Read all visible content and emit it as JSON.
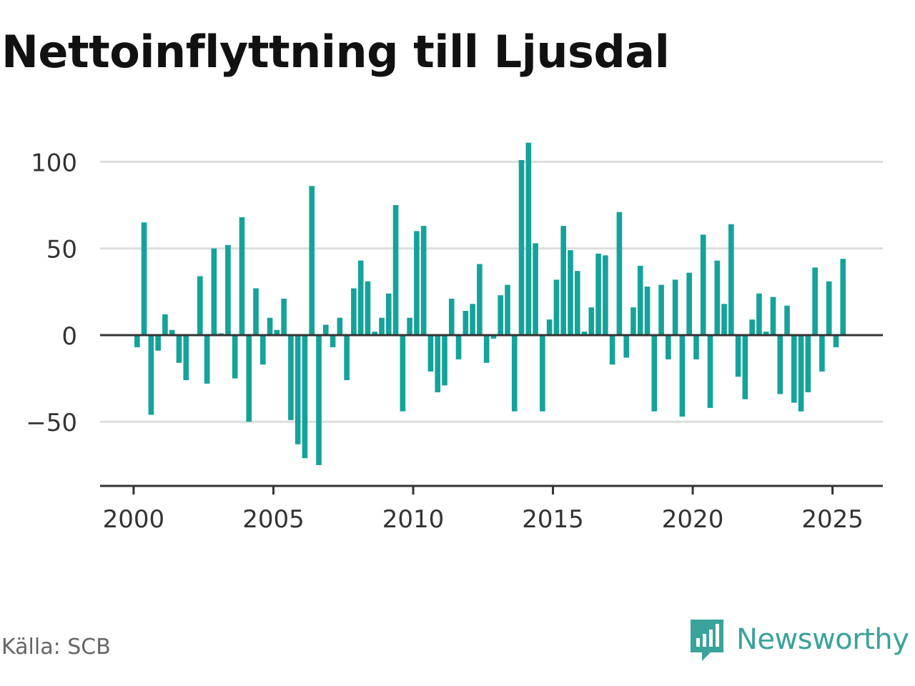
{
  "title": "Nettoinflyttning till Ljusdal",
  "source": "Källa: SCB",
  "brand": {
    "name": "Newsworthy",
    "logo_icon": "newsworthy-logo-icon",
    "color": "#3aa39a"
  },
  "colors": {
    "bar": "#14a39a",
    "grid": "#dddddd",
    "zero_line": "#333333",
    "axis": "#333333"
  },
  "chart_data": {
    "type": "bar",
    "title": "Nettoinflyttning till Ljusdal",
    "xlabel": "",
    "ylabel": "",
    "ylim": [
      -87,
      115
    ],
    "xlim": [
      1998.8,
      2026.8
    ],
    "yticks": [
      100,
      50,
      0,
      -50
    ],
    "ytick_labels": [
      "100",
      "50",
      "0",
      "−50"
    ],
    "xticks": [
      2000,
      2005,
      2010,
      2015,
      2020,
      2025
    ],
    "xtick_labels": [
      "2000",
      "2005",
      "2010",
      "2015",
      "2020",
      "2025"
    ],
    "grid": true,
    "x_start": 2000.125,
    "x_step": 0.25,
    "values": [
      -7,
      65,
      -46,
      -9,
      12,
      3,
      -16,
      -26,
      0,
      34,
      -28,
      50,
      1,
      52,
      -25,
      68,
      -50,
      27,
      -17,
      10,
      3,
      21,
      -49,
      -63,
      -71,
      86,
      -75,
      6,
      -7,
      10,
      -26,
      27,
      43,
      31,
      2,
      10,
      24,
      75,
      -44,
      10,
      60,
      63,
      -21,
      -33,
      -29,
      21,
      -14,
      14,
      18,
      41,
      -16,
      -2,
      23,
      29,
      -44,
      101,
      111,
      53,
      -44,
      9,
      32,
      63,
      49,
      37,
      2,
      16,
      47,
      46,
      -17,
      71,
      -13,
      16,
      40,
      28,
      -44,
      29,
      -14,
      32,
      -47,
      36,
      -14,
      58,
      -42,
      43,
      18,
      64,
      -24,
      -37,
      9,
      24,
      2,
      22,
      -34,
      17,
      -39,
      -44,
      -33,
      39,
      -21,
      31,
      -7,
      44
    ]
  }
}
